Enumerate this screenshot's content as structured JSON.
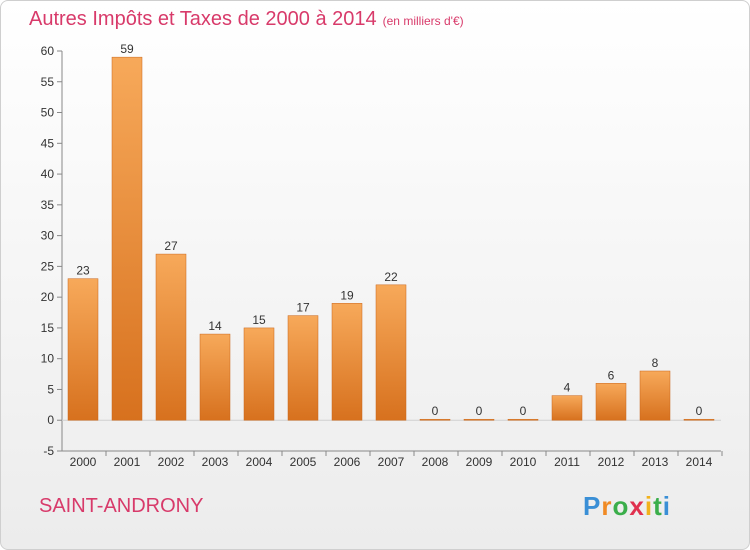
{
  "title": "Autres Impôts et Taxes de 2000 à 2014",
  "unit": "(en milliers d'€)",
  "commune": "SAINT-ANDRONY",
  "logo": {
    "letters": [
      "P",
      "r",
      "o",
      "x",
      "i",
      "t",
      "i"
    ],
    "colors": [
      "#3a8fd6",
      "#f08a24",
      "#3aae4a",
      "#e0304e",
      "#f2b21c",
      "#3aae4a",
      "#3a8fd6"
    ]
  },
  "colors": {
    "bar_top": "#f7a95a",
    "bar_bottom": "#d7711e",
    "title": "#d83a6a"
  },
  "chart_data": {
    "type": "bar",
    "categories": [
      "2000",
      "2001",
      "2002",
      "2003",
      "2004",
      "2005",
      "2006",
      "2007",
      "2008",
      "2009",
      "2010",
      "2011",
      "2012",
      "2013",
      "2014"
    ],
    "values": [
      23,
      59,
      27,
      14,
      15,
      17,
      19,
      22,
      0,
      0,
      0,
      4,
      6,
      8,
      0
    ],
    "ylim": [
      -5,
      60
    ],
    "yticks": [
      -5,
      0,
      5,
      10,
      15,
      20,
      25,
      30,
      35,
      40,
      45,
      50,
      55,
      60
    ],
    "grid": false
  }
}
